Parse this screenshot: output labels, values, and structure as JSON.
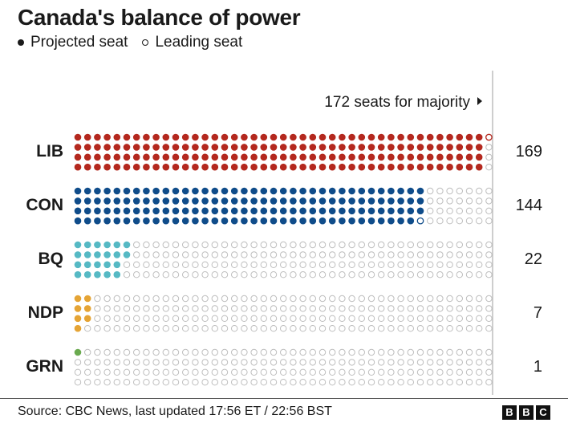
{
  "title": "Canada's balance of power",
  "legend": {
    "projected": "Projected seat",
    "leading": "Leading seat"
  },
  "majority_label": "172 seats for majority",
  "source": "Source: CBC News,  last updated 17:56 ET / 22:56 BST",
  "logo": [
    "B",
    "B",
    "C"
  ],
  "colors": {
    "LIB": "#b4281e",
    "CON": "#0f4c8a",
    "BQ": "#56b9c4",
    "NDP": "#e5a435",
    "GRN": "#6aaa4f",
    "empty_stroke": "#bdbdbd"
  },
  "chart_data": {
    "type": "waffle",
    "title": "Canada's balance of power",
    "total_seats_per_row": 172,
    "majority": 172,
    "categories": [
      "LIB",
      "CON",
      "BQ",
      "NDP",
      "GRN"
    ],
    "series": [
      {
        "name": "Projected seat",
        "values": [
          168,
          143,
          22,
          7,
          1
        ]
      },
      {
        "name": "Leading seat",
        "values": [
          1,
          1,
          0,
          0,
          0
        ]
      }
    ],
    "totals": [
      169,
      144,
      22,
      7,
      1
    ]
  }
}
